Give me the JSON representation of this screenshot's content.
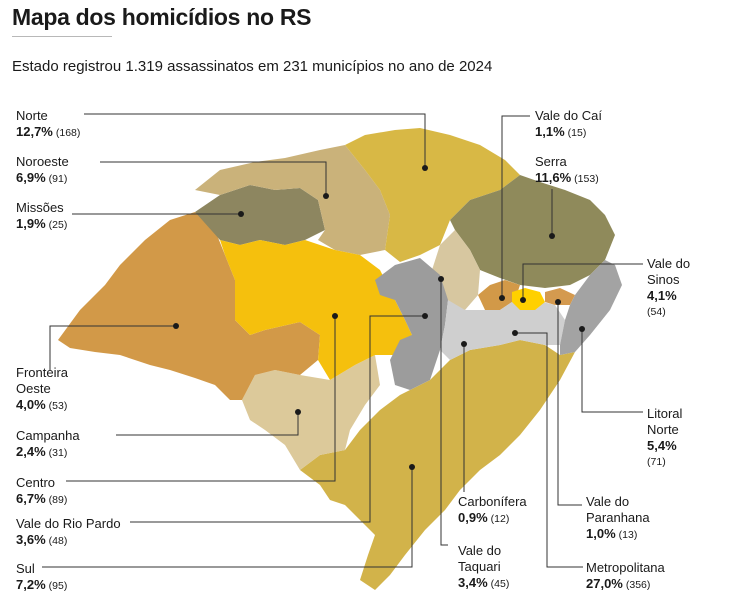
{
  "title": "Mapa dos homicídios no RS",
  "subtitle": "Estado registrou 1.319 assassinatos em 231 municípios no ano de 2024",
  "colors": {
    "background": "#ffffff",
    "sul": "#d2b34a",
    "norte": "#d8b845",
    "noroeste": "#cab27a",
    "missoes": "#8d8660",
    "serra": "#8f8a5b",
    "fronteira_oeste": "#d29948",
    "campanha": "#dcc99a",
    "centro": "#f5c00d",
    "vale_do_rio_pardo": "#9c9c9c",
    "vale_do_taquari": "#d7c7a0",
    "metropolitana": "#cfcfcf",
    "litoral_norte": "#a3a3a3",
    "vale_do_sinos": "#ffd000",
    "paranhana": "#d49a4f",
    "leader_line": "#333333",
    "municipal_borders": "#ffffff"
  },
  "regions": [
    {
      "name": "Norte",
      "pct": "12,7%",
      "count": "168"
    },
    {
      "name": "Noroeste",
      "pct": "6,9%",
      "count": "91"
    },
    {
      "name": "Missões",
      "pct": "1,9%",
      "count": "25"
    },
    {
      "name": "Fronteira Oeste",
      "pct": "4,0%",
      "count": "53"
    },
    {
      "name": "Campanha",
      "pct": "2,4%",
      "count": "31"
    },
    {
      "name": "Centro",
      "pct": "6,7%",
      "count": "89"
    },
    {
      "name": "Vale do Rio Pardo",
      "pct": "3,6%",
      "count": "48"
    },
    {
      "name": "Sul",
      "pct": "7,2%",
      "count": "95"
    },
    {
      "name": "Vale do Caí",
      "pct": "1,1%",
      "count": "15"
    },
    {
      "name": "Serra",
      "pct": "11,6%",
      "count": "153"
    },
    {
      "name": "Vale do Sinos",
      "pct": "4,1%",
      "count": "54"
    },
    {
      "name": "Litoral Norte",
      "pct": "5,4%",
      "count": "71"
    },
    {
      "name": "Carbonífera",
      "pct": "0,9%",
      "count": "12"
    },
    {
      "name": "Vale do Taquari",
      "pct": "3,4%",
      "count": "45"
    },
    {
      "name": "Vale do Paranhana",
      "pct": "1,0%",
      "count": "13"
    },
    {
      "name": "Metropolitana",
      "pct": "27,0%",
      "count": "356"
    }
  ]
}
